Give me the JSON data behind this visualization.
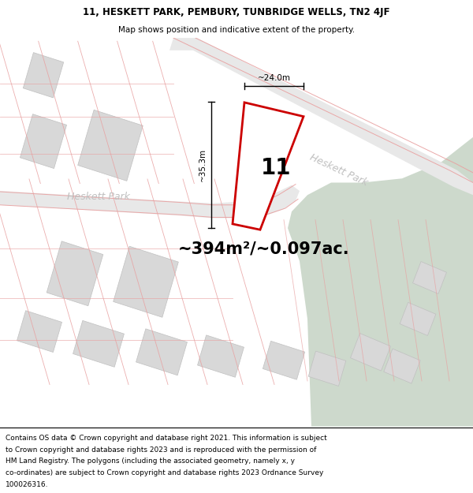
{
  "title_line1": "11, HESKETT PARK, PEMBURY, TUNBRIDGE WELLS, TN2 4JF",
  "title_line2": "Map shows position and indicative extent of the property.",
  "area_text": "~394m²/~0.097ac.",
  "label_number": "11",
  "dim_height_label": "~35.3m",
  "dim_width_label": "~24.0m",
  "street_label_horiz": "Heskett Park",
  "street_label_diag": "Heskett Park",
  "footer_lines": [
    "Contains OS data © Crown copyright and database right 2021. This information is subject",
    "to Crown copyright and database rights 2023 and is reproduced with the permission of",
    "HM Land Registry. The polygons (including the associated geometry, namely x, y",
    "co-ordinates) are subject to Crown copyright and database rights 2023 Ordnance Survey",
    "100026316."
  ],
  "bg_white": "#ffffff",
  "map_bg": "#f7f7f7",
  "road_fill": "#e8e8e8",
  "green_fill": "#cdd9cc",
  "building_fill": "#d8d8d8",
  "road_line": "#e8a0a0",
  "prop_line": "#cc0000",
  "prop_fill": "#ffffff",
  "dim_color": "#000000",
  "street_color": "#c0c0c0",
  "title_fs": 8.5,
  "subtitle_fs": 7.5,
  "area_fs": 15,
  "num_fs": 20,
  "dim_fs": 7.5,
  "street_fs": 9,
  "footer_fs": 6.5
}
